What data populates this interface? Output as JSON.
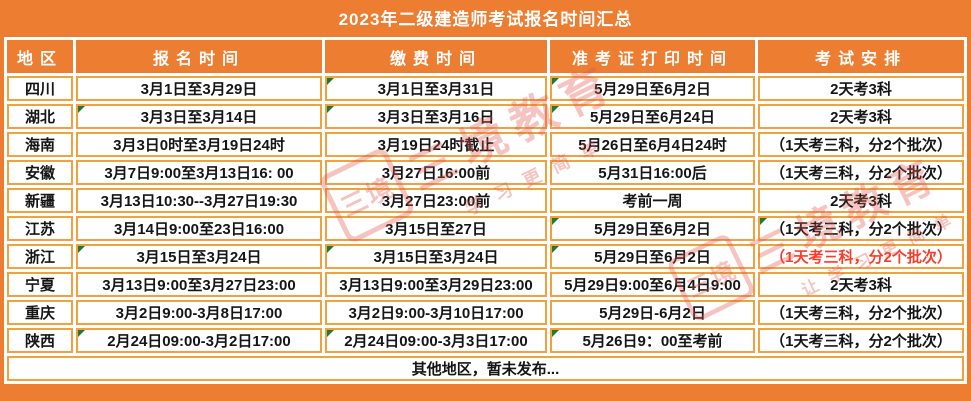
{
  "title": "2023年二级建造师考试报名时间汇总",
  "columns": [
    "地区",
    "报名时间",
    "缴费时间",
    "准考证打印时间",
    "考试安排"
  ],
  "rows": [
    {
      "region": "四川",
      "signup": "3月1日至3月29日",
      "pay": "3月1日至3月31日",
      "print": "5月29日至6月2日",
      "arrange": "2天考3科",
      "red": false,
      "markers": [
        2,
        3
      ]
    },
    {
      "region": "湖北",
      "signup": "3月3日至3月14日",
      "pay": "3月3日至3月16日",
      "print": "5月29日至6月24日",
      "arrange": "2天考3科",
      "red": false,
      "markers": [
        1,
        2,
        3
      ]
    },
    {
      "region": "海南",
      "signup": "3月3日0时至3月19日24时",
      "pay": "3月19日24时截止",
      "print": "5月26日至6月4日24时",
      "arrange": "（1天考三科，分2个批次）",
      "red": false,
      "markers": []
    },
    {
      "region": "安徽",
      "signup": "3月7日9:00至3月13日16: 00",
      "pay": "3月27日16:00前",
      "print": "5月31日16:00后",
      "arrange": "（1天考三科，分2个批次）",
      "red": false,
      "markers": []
    },
    {
      "region": "新疆",
      "signup": "3月13日10:30--3月27日19:30",
      "pay": "3月27日23:00前",
      "print": "考前一周",
      "arrange": "2天考3科",
      "red": false,
      "markers": []
    },
    {
      "region": "江苏",
      "signup": "3月14日9:00至23日16:00",
      "pay": "3月15日至27日",
      "print": "5月29日至6月2日",
      "arrange": "（1天考三科，分2个批次）",
      "red": false,
      "markers": [
        3,
        4
      ]
    },
    {
      "region": "浙江",
      "signup": "3月15日至3月24日",
      "pay": "3月15日至3月24日",
      "print": "5月29日至6月2日",
      "arrange": "（1天考三科，分2个批次）",
      "red": true,
      "markers": [
        1,
        2,
        3
      ]
    },
    {
      "region": "宁夏",
      "signup": "3月13日9:00至3月27日23:00",
      "pay": "3月13日9:00至3月29日23:00",
      "print": "5月29日9:00至6月4日9:00",
      "arrange": "2天考3科",
      "red": false,
      "markers": []
    },
    {
      "region": "重庆",
      "signup": "3月2日9:00-3月8日17:00",
      "pay": "3月2日9:00-3月10日17:00",
      "print": "5月29日-6月2日",
      "arrange": "（1天考三科，分2个批次）",
      "red": false,
      "markers": []
    },
    {
      "region": "陕西",
      "signup": "2月24日09:00-3月2日17:00",
      "pay": "2月24日09:00-3月3日17:00",
      "print": "5月26日9：00至考前",
      "arrange": "（1天考三科，分2个批次）",
      "red": false,
      "markers": [
        1,
        2,
        3
      ]
    }
  ],
  "footer": "其他地区，暂未发布...",
  "watermark": {
    "stamp": "三境",
    "brand": "三境教育",
    "slogan_left": "学习更简单",
    "slogan_right": "让学习更简单"
  },
  "colors": {
    "header_orange": "#ED7D31",
    "border_orange": "#F2A13C",
    "highlight_red": "#FB3B26",
    "marker_green": "#1E7B34",
    "watermark_red": "#E2564A"
  }
}
